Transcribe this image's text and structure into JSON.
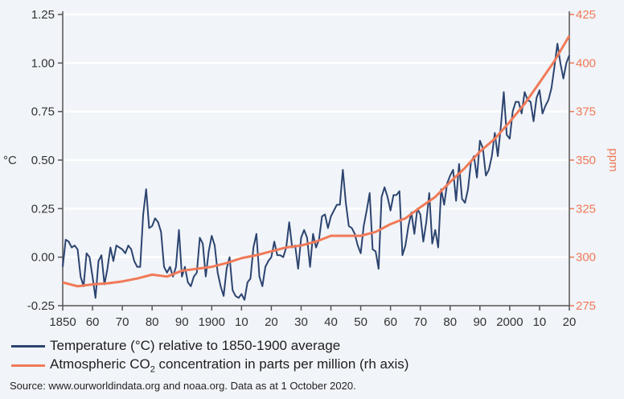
{
  "chart_data": {
    "type": "line",
    "xlim": [
      1850,
      2020
    ],
    "x_tick_labels": [
      "1850",
      "60",
      "70",
      "80",
      "90",
      "1900",
      "10",
      "20",
      "30",
      "40",
      "50",
      "60",
      "70",
      "80",
      "90",
      "2000",
      "10",
      "20"
    ],
    "left_axis": {
      "label": "°C",
      "ylim": [
        -0.25,
        1.25
      ],
      "tick_labels": [
        "-0.25",
        "0.00",
        "0.25",
        "0.50",
        "0.75",
        "1.00",
        "1.25"
      ],
      "color": "#2c4470"
    },
    "right_axis": {
      "label": "ppm",
      "ylim": [
        275,
        425
      ],
      "tick_labels": [
        "275",
        "300",
        "325",
        "350",
        "375",
        "400",
        "425"
      ],
      "color": "#f07a58"
    },
    "grid": "horizontal",
    "series": [
      {
        "name": "Temperature (°C) relative to 1850-1900 average",
        "axis": "left",
        "color": "#2c4470",
        "x_start": 1850,
        "values": [
          -0.05,
          0.09,
          0.08,
          0.05,
          0.06,
          0.04,
          -0.1,
          -0.15,
          0.02,
          0.0,
          -0.1,
          -0.21,
          -0.02,
          0.01,
          -0.14,
          -0.06,
          0.05,
          -0.02,
          0.06,
          0.05,
          0.04,
          0.02,
          0.06,
          0.04,
          -0.02,
          -0.05,
          -0.05,
          0.22,
          0.35,
          0.15,
          0.16,
          0.2,
          0.18,
          0.13,
          -0.05,
          -0.08,
          -0.05,
          -0.1,
          -0.05,
          0.14,
          -0.1,
          -0.05,
          -0.13,
          -0.15,
          -0.1,
          -0.08,
          0.1,
          0.07,
          -0.1,
          0.03,
          0.11,
          0.06,
          -0.08,
          -0.15,
          -0.2,
          -0.06,
          0.0,
          -0.17,
          -0.2,
          -0.21,
          -0.19,
          -0.22,
          -0.13,
          -0.11,
          0.05,
          0.12,
          -0.1,
          -0.15,
          -0.05,
          -0.02,
          0.0,
          0.08,
          0.01,
          0.01,
          0.0,
          0.05,
          0.18,
          0.05,
          0.06,
          -0.06,
          0.1,
          0.14,
          0.1,
          -0.05,
          0.12,
          0.05,
          0.09,
          0.21,
          0.22,
          0.15,
          0.21,
          0.24,
          0.27,
          0.27,
          0.45,
          0.28,
          0.16,
          0.15,
          0.12,
          0.06,
          0.02,
          0.16,
          0.24,
          0.33,
          0.04,
          0.03,
          -0.06,
          0.31,
          0.36,
          0.31,
          0.24,
          0.32,
          0.32,
          0.34,
          0.01,
          0.06,
          0.16,
          0.23,
          0.12,
          0.25,
          0.22,
          0.08,
          0.18,
          0.33,
          0.07,
          0.14,
          0.05,
          0.35,
          0.27,
          0.38,
          0.42,
          0.45,
          0.29,
          0.48,
          0.3,
          0.28,
          0.35,
          0.49,
          0.52,
          0.41,
          0.6,
          0.56,
          0.42,
          0.45,
          0.52,
          0.64,
          0.52,
          0.67,
          0.85,
          0.63,
          0.61,
          0.75,
          0.8,
          0.8,
          0.74,
          0.85,
          0.81,
          0.8,
          0.7,
          0.82,
          0.86,
          0.74,
          0.78,
          0.81,
          0.87,
          0.98,
          1.1,
          1.0,
          0.92,
          1.0,
          1.04
        ]
      },
      {
        "name_parts": [
          "Atmospheric CO",
          "2",
          " concentration in parts per million (rh axis)"
        ],
        "axis": "right",
        "color": "#f07a58",
        "x": [
          1850,
          1855,
          1860,
          1865,
          1870,
          1875,
          1880,
          1885,
          1890,
          1895,
          1900,
          1905,
          1910,
          1915,
          1920,
          1925,
          1930,
          1935,
          1940,
          1945,
          1950,
          1955,
          1960,
          1965,
          1970,
          1975,
          1980,
          1985,
          1990,
          1995,
          2000,
          2005,
          2010,
          2015,
          2020
        ],
        "values": [
          287,
          285,
          286,
          286.5,
          287.5,
          289,
          291,
          290,
          293,
          294,
          295,
          297,
          299.5,
          301,
          303,
          305,
          306,
          308,
          311,
          311,
          311,
          313,
          317,
          320,
          325.7,
          331,
          338.7,
          346,
          354.4,
          361,
          369.7,
          379,
          389.9,
          401,
          414
        ]
      }
    ]
  },
  "source": "Source: www.ourworldindata.org and noaa.org. Data as at 1 October 2020."
}
